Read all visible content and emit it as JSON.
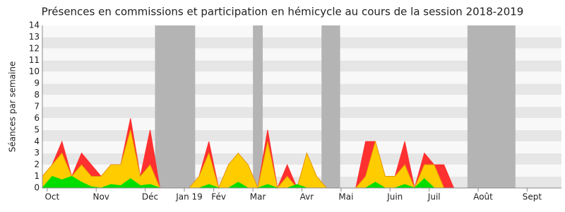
{
  "chart_data": {
    "type": "area",
    "title": "Présences en commissions et participation en hémicycle au cours de la session 2018-2019",
    "ylabel": "Séances par semaine",
    "x": [
      0,
      1,
      2,
      3,
      4,
      5,
      6,
      7,
      8,
      9,
      10,
      11,
      12,
      13,
      14,
      15,
      16,
      17,
      18,
      19,
      20,
      21,
      22,
      23,
      24,
      25,
      26,
      27,
      28,
      29,
      30,
      31,
      32,
      33,
      34,
      35,
      36,
      37,
      38,
      39,
      40,
      41,
      42,
      43,
      44,
      45,
      46,
      47,
      48,
      49,
      50,
      51,
      52
    ],
    "series": [
      {
        "color": "#ff3030",
        "values": [
          1,
          2,
          4,
          1,
          3,
          2,
          1,
          2,
          2,
          6,
          1,
          5,
          0,
          0,
          0,
          0,
          1,
          4,
          0,
          2,
          3,
          2,
          0,
          5,
          0,
          2,
          0,
          3,
          1,
          0,
          0,
          0,
          0,
          4,
          4,
          1,
          1,
          4,
          0,
          3,
          2,
          2,
          0,
          0,
          0,
          0,
          0,
          0,
          0,
          0,
          0,
          0,
          0
        ]
      },
      {
        "color": "#ffcc00",
        "values": [
          1,
          2,
          3,
          1,
          2,
          1,
          1,
          2,
          2,
          5,
          1,
          2,
          0,
          0,
          0,
          0,
          1,
          3,
          0,
          2,
          3,
          2,
          0,
          4,
          0,
          1,
          0,
          3,
          1,
          0,
          0,
          0,
          0,
          1,
          4,
          1,
          1,
          2,
          0,
          2,
          2,
          0,
          0,
          0,
          0,
          0,
          0,
          0,
          0,
          0,
          0,
          0,
          0
        ]
      },
      {
        "color": "#00dd00",
        "values": [
          0,
          1,
          0.7,
          1,
          0.5,
          0.1,
          0,
          0.3,
          0.2,
          0.8,
          0.2,
          0.3,
          0,
          0,
          0,
          0,
          0,
          0.3,
          0,
          0,
          0.5,
          0,
          0,
          0.3,
          0,
          0,
          0.3,
          0,
          0,
          0,
          0,
          0,
          0,
          0,
          0.5,
          0,
          0,
          0.3,
          0,
          0.8,
          0,
          0,
          0,
          0,
          0,
          0,
          0,
          0,
          0,
          0,
          0,
          0,
          0
        ]
      }
    ],
    "shaded": [
      [
        11.5,
        15.6
      ],
      [
        21.5,
        22.5
      ],
      [
        28.5,
        30.4
      ],
      [
        43.4,
        48.3
      ]
    ],
    "shade_color": "#b4b4b4",
    "xlim": [
      0,
      53
    ],
    "xticks": [
      {
        "value": 1,
        "label": "Oct"
      },
      {
        "value": 6,
        "label": "Nov"
      },
      {
        "value": 11,
        "label": "Déc"
      },
      {
        "value": 15,
        "label": "Jan 19"
      },
      {
        "value": 18,
        "label": "Fév"
      },
      {
        "value": 22,
        "label": "Mar"
      },
      {
        "value": 27,
        "label": "Avr"
      },
      {
        "value": 31,
        "label": "Mai"
      },
      {
        "value": 36,
        "label": "Juin"
      },
      {
        "value": 40,
        "label": "Juil"
      },
      {
        "value": 45,
        "label": "Août"
      },
      {
        "value": 50,
        "label": "Sept"
      }
    ],
    "ylim": [
      0,
      14
    ],
    "yticks": [
      0,
      1,
      2,
      3,
      4,
      5,
      6,
      7,
      8,
      9,
      10,
      11,
      12,
      13,
      14
    ],
    "grid": true
  }
}
